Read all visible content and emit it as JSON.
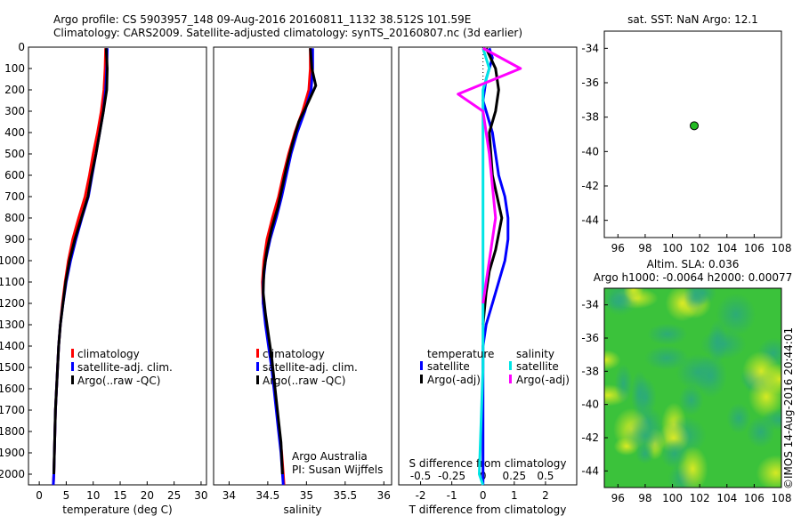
{
  "header": {
    "line1": "Argo profile: CS 5903957_148 09-Aug-2016 20160811_1132 38.512S 101.59E",
    "line2": "Climatology: CARS2009. Satellite-adjusted climatology: synTS_20160807.nc (3d earlier)"
  },
  "side_label": "©IMOS 14-Aug-2016 20:44:01",
  "colors": {
    "climatology": "#ff0000",
    "satellite": "#0000ff",
    "argo": "#000000",
    "sal_satellite": "#00e5e5",
    "sal_argo": "#ff00ff",
    "marker": "#22bb22"
  },
  "chart_data": [
    {
      "id": "temperature",
      "type": "line",
      "xlabel": "temperature (deg C)",
      "ylabel": "",
      "xlim": [
        -2,
        31
      ],
      "ylim": [
        2050,
        0
      ],
      "xticks": [
        "0",
        "5",
        "10",
        "15",
        "20",
        "25",
        "30"
      ],
      "yticks": [
        "0",
        "100",
        "200",
        "300",
        "400",
        "500",
        "600",
        "700",
        "800",
        "900",
        "1000",
        "1100",
        "1200",
        "1300",
        "1400",
        "1500",
        "1600",
        "1700",
        "1800",
        "1900",
        "2000"
      ],
      "legend": [
        "climatology",
        "satellite-adj. clim.",
        "Argo(..raw -QC)"
      ],
      "series": [
        {
          "name": "climatology",
          "color": "#ff0000",
          "points": [
            [
              12.3,
              5
            ],
            [
              12.2,
              100
            ],
            [
              12.0,
              200
            ],
            [
              11.5,
              300
            ],
            [
              10.8,
              400
            ],
            [
              10.0,
              500
            ],
            [
              9.3,
              600
            ],
            [
              8.5,
              700
            ],
            [
              7.3,
              800
            ],
            [
              6.2,
              900
            ],
            [
              5.4,
              1000
            ],
            [
              4.8,
              1100
            ],
            [
              4.3,
              1200
            ],
            [
              3.9,
              1300
            ],
            [
              3.6,
              1400
            ],
            [
              3.4,
              1500
            ],
            [
              3.2,
              1600
            ],
            [
              3.0,
              1700
            ],
            [
              2.9,
              1800
            ],
            [
              2.8,
              1900
            ],
            [
              2.7,
              2000
            ],
            [
              2.6,
              2050
            ]
          ]
        },
        {
          "name": "satellite-adj. clim.",
          "color": "#0000ff",
          "points": [
            [
              12.6,
              5
            ],
            [
              12.5,
              100
            ],
            [
              12.3,
              200
            ],
            [
              11.9,
              300
            ],
            [
              11.2,
              400
            ],
            [
              10.5,
              500
            ],
            [
              9.8,
              600
            ],
            [
              9.1,
              700
            ],
            [
              7.9,
              800
            ],
            [
              6.8,
              900
            ],
            [
              5.8,
              1000
            ],
            [
              5.0,
              1100
            ],
            [
              4.4,
              1200
            ],
            [
              3.9,
              1300
            ],
            [
              3.6,
              1400
            ],
            [
              3.4,
              1500
            ],
            [
              3.2,
              1600
            ],
            [
              3.0,
              1700
            ],
            [
              2.9,
              1800
            ],
            [
              2.8,
              1900
            ],
            [
              2.7,
              2000
            ],
            [
              2.6,
              2050
            ]
          ]
        },
        {
          "name": "Argo(..raw -QC)",
          "color": "#000000",
          "points": [
            [
              12.4,
              5
            ],
            [
              12.6,
              100
            ],
            [
              12.5,
              200
            ],
            [
              11.9,
              300
            ],
            [
              11.2,
              400
            ],
            [
              10.5,
              500
            ],
            [
              9.7,
              600
            ],
            [
              9.0,
              700
            ],
            [
              7.8,
              800
            ],
            [
              6.6,
              900
            ],
            [
              5.6,
              1000
            ],
            [
              4.9,
              1100
            ],
            [
              4.4,
              1200
            ],
            [
              3.9,
              1300
            ],
            [
              3.6,
              1400
            ],
            [
              3.4,
              1500
            ],
            [
              3.2,
              1600
            ],
            [
              3.0,
              1700
            ],
            [
              2.9,
              1800
            ],
            [
              2.8,
              1900
            ],
            [
              2.7,
              2000
            ]
          ]
        }
      ]
    },
    {
      "id": "salinity",
      "type": "line",
      "xlabel": "salinity",
      "ylabel": "",
      "xlim": [
        33.8,
        36.1
      ],
      "ylim": [
        2050,
        0
      ],
      "xticks": [
        "34",
        "34.5",
        "35",
        "35.5",
        "36"
      ],
      "legend": [
        "climatology",
        "satellite-adj. clim.",
        "Argo(..raw -QC)"
      ],
      "annotation": [
        "Argo Australia",
        "PI: Susan Wijffels"
      ],
      "series": [
        {
          "name": "climatology",
          "color": "#ff0000",
          "points": [
            [
              35.05,
              5
            ],
            [
              35.05,
              100
            ],
            [
              35.03,
              200
            ],
            [
              34.95,
              300
            ],
            [
              34.85,
              400
            ],
            [
              34.77,
              500
            ],
            [
              34.7,
              600
            ],
            [
              34.64,
              700
            ],
            [
              34.56,
              800
            ],
            [
              34.49,
              900
            ],
            [
              34.45,
              1000
            ],
            [
              34.43,
              1100
            ],
            [
              34.44,
              1200
            ],
            [
              34.48,
              1300
            ],
            [
              34.52,
              1400
            ],
            [
              34.56,
              1500
            ],
            [
              34.59,
              1600
            ],
            [
              34.62,
              1700
            ],
            [
              34.65,
              1800
            ],
            [
              34.68,
              1900
            ],
            [
              34.7,
              2000
            ],
            [
              34.71,
              2050
            ]
          ]
        },
        {
          "name": "satellite-adj. clim.",
          "color": "#0000ff",
          "points": [
            [
              35.08,
              5
            ],
            [
              35.08,
              100
            ],
            [
              35.06,
              200
            ],
            [
              34.98,
              300
            ],
            [
              34.88,
              400
            ],
            [
              34.8,
              500
            ],
            [
              34.74,
              600
            ],
            [
              34.68,
              700
            ],
            [
              34.61,
              800
            ],
            [
              34.53,
              900
            ],
            [
              34.47,
              1000
            ],
            [
              34.44,
              1100
            ],
            [
              34.44,
              1200
            ],
            [
              34.47,
              1300
            ],
            [
              34.51,
              1400
            ],
            [
              34.55,
              1500
            ],
            [
              34.58,
              1600
            ],
            [
              34.61,
              1700
            ],
            [
              34.64,
              1800
            ],
            [
              34.67,
              1900
            ],
            [
              34.69,
              2000
            ],
            [
              34.7,
              2050
            ]
          ]
        },
        {
          "name": "Argo(..raw -QC)",
          "color": "#000000",
          "points": [
            [
              35.05,
              5
            ],
            [
              35.07,
              100
            ],
            [
              35.12,
              180
            ],
            [
              35.02,
              260
            ],
            [
              34.9,
              350
            ],
            [
              34.82,
              450
            ],
            [
              34.75,
              550
            ],
            [
              34.69,
              650
            ],
            [
              34.63,
              750
            ],
            [
              34.55,
              850
            ],
            [
              34.49,
              950
            ],
            [
              34.45,
              1050
            ],
            [
              34.44,
              1150
            ],
            [
              34.47,
              1250
            ],
            [
              34.51,
              1350
            ],
            [
              34.55,
              1450
            ],
            [
              34.58,
              1550
            ],
            [
              34.61,
              1650
            ],
            [
              34.64,
              1750
            ],
            [
              34.67,
              1850
            ],
            [
              34.69,
              2000
            ]
          ]
        }
      ]
    },
    {
      "id": "difference",
      "type": "line",
      "xlabel": "T difference from climatology",
      "xlabel_top": "S difference from climatology",
      "ylabel": "",
      "xlim": [
        -2.7,
        3.0
      ],
      "ylim": [
        2050,
        0
      ],
      "xticks": [
        "-2",
        "-1",
        "0",
        "1",
        "2"
      ],
      "xticks_salinity": [
        "-0.5",
        "-0.25",
        "0",
        "0.25",
        "0.5"
      ],
      "legend_groups": [
        {
          "title": "temperature",
          "entries": [
            "satellite",
            "Argo(-adj)"
          ]
        },
        {
          "title": "salinity",
          "entries": [
            "satellite",
            "Argo(-adj)"
          ]
        }
      ],
      "series": [
        {
          "name": "temperature satellite",
          "color": "#0000ff",
          "points": [
            [
              0.2,
              5
            ],
            [
              0.3,
              50
            ],
            [
              0.1,
              150
            ],
            [
              0.0,
              250
            ],
            [
              0.3,
              400
            ],
            [
              0.5,
              600
            ],
            [
              0.7,
              700
            ],
            [
              0.8,
              800
            ],
            [
              0.8,
              900
            ],
            [
              0.7,
              1000
            ],
            [
              0.5,
              1100
            ],
            [
              0.3,
              1200
            ],
            [
              0.1,
              1300
            ],
            [
              0.0,
              1400
            ],
            [
              0.0,
              2050
            ]
          ]
        },
        {
          "name": "temperature Argo(-adj)",
          "color": "#000000",
          "points": [
            [
              0.1,
              5
            ],
            [
              0.4,
              100
            ],
            [
              0.5,
              200
            ],
            [
              0.4,
              300
            ],
            [
              0.2,
              400
            ],
            [
              0.3,
              600
            ],
            [
              0.6,
              800
            ],
            [
              0.4,
              950
            ],
            [
              0.2,
              1050
            ],
            [
              0.1,
              1150
            ],
            [
              0.0,
              1300
            ]
          ]
        },
        {
          "name": "salinity satellite",
          "color": "#00e5e5",
          "points": [
            [
              0.0,
              5
            ],
            [
              0.05,
              100
            ],
            [
              0.0,
              200
            ],
            [
              0.0,
              400
            ],
            [
              0.0,
              1000
            ],
            [
              0.0,
              1500
            ],
            [
              -0.03,
              2000
            ],
            [
              0.0,
              2050
            ]
          ]
        },
        {
          "name": "salinity Argo(-adj)",
          "color": "#ff00ff",
          "points": [
            [
              0.0,
              5
            ],
            [
              0.3,
              100
            ],
            [
              -0.2,
              220
            ],
            [
              0.0,
              300
            ],
            [
              0.05,
              500
            ],
            [
              0.1,
              800
            ],
            [
              0.05,
              1000
            ],
            [
              0.0,
              1200
            ]
          ]
        }
      ]
    },
    {
      "id": "location",
      "type": "scatter",
      "title": "sat. SST: NaN Argo: 12.1",
      "xlim": [
        95,
        108
      ],
      "ylim": [
        -45,
        -33
      ],
      "xticks": [
        "96",
        "98",
        "100",
        "102",
        "104",
        "106",
        "108"
      ],
      "yticks": [
        "-34",
        "-36",
        "-38",
        "-40",
        "-42",
        "-44"
      ],
      "points": [
        [
          101.6,
          -38.5
        ]
      ]
    },
    {
      "id": "sla",
      "type": "heatmap",
      "title": "Altim. SLA: 0.036",
      "subtitle": "Argo h1000: -0.0064 h2000: 0.00077",
      "xlim": [
        95,
        108
      ],
      "ylim": [
        -45,
        -33
      ],
      "xticks": [
        "96",
        "98",
        "100",
        "102",
        "104",
        "106",
        "108"
      ],
      "yticks": [
        "-34",
        "-36",
        "-38",
        "-40",
        "-42",
        "-44"
      ]
    }
  ]
}
